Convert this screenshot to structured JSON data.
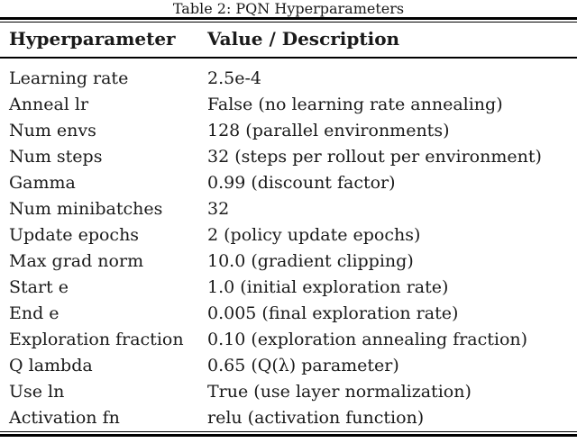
{
  "table": {
    "caption": "Table 2: PQN Hyperparameters",
    "columns": [
      "Hyperparameter",
      "Value / Description"
    ],
    "rows": [
      {
        "param": "Learning rate",
        "value": "2.5e-4"
      },
      {
        "param": "Anneal lr",
        "value": "False (no learning rate annealing)"
      },
      {
        "param": "Num envs",
        "value": "128 (parallel environments)"
      },
      {
        "param": "Num steps",
        "value": "32 (steps per rollout per environment)"
      },
      {
        "param": "Gamma",
        "value": "0.99 (discount factor)"
      },
      {
        "param": "Num minibatches",
        "value": "32"
      },
      {
        "param": "Update epochs",
        "value": "2 (policy update epochs)"
      },
      {
        "param": "Max grad norm",
        "value": "10.0 (gradient clipping)"
      },
      {
        "param": "Start e",
        "value": "1.0 (initial exploration rate)"
      },
      {
        "param": "End e",
        "value": "0.005 (final exploration rate)"
      },
      {
        "param": "Exploration fraction",
        "value": "0.10 (exploration annealing fraction)"
      },
      {
        "param": "Q lambda",
        "value": "0.65 (Q(λ) parameter)"
      },
      {
        "param": "Use ln",
        "value": "True (use layer normalization)"
      },
      {
        "param": "Activation fn",
        "value": "relu (activation function)"
      }
    ],
    "colors": {
      "text": "#1a1a1a",
      "rule": "#000000",
      "background": "#ffffff"
    }
  }
}
